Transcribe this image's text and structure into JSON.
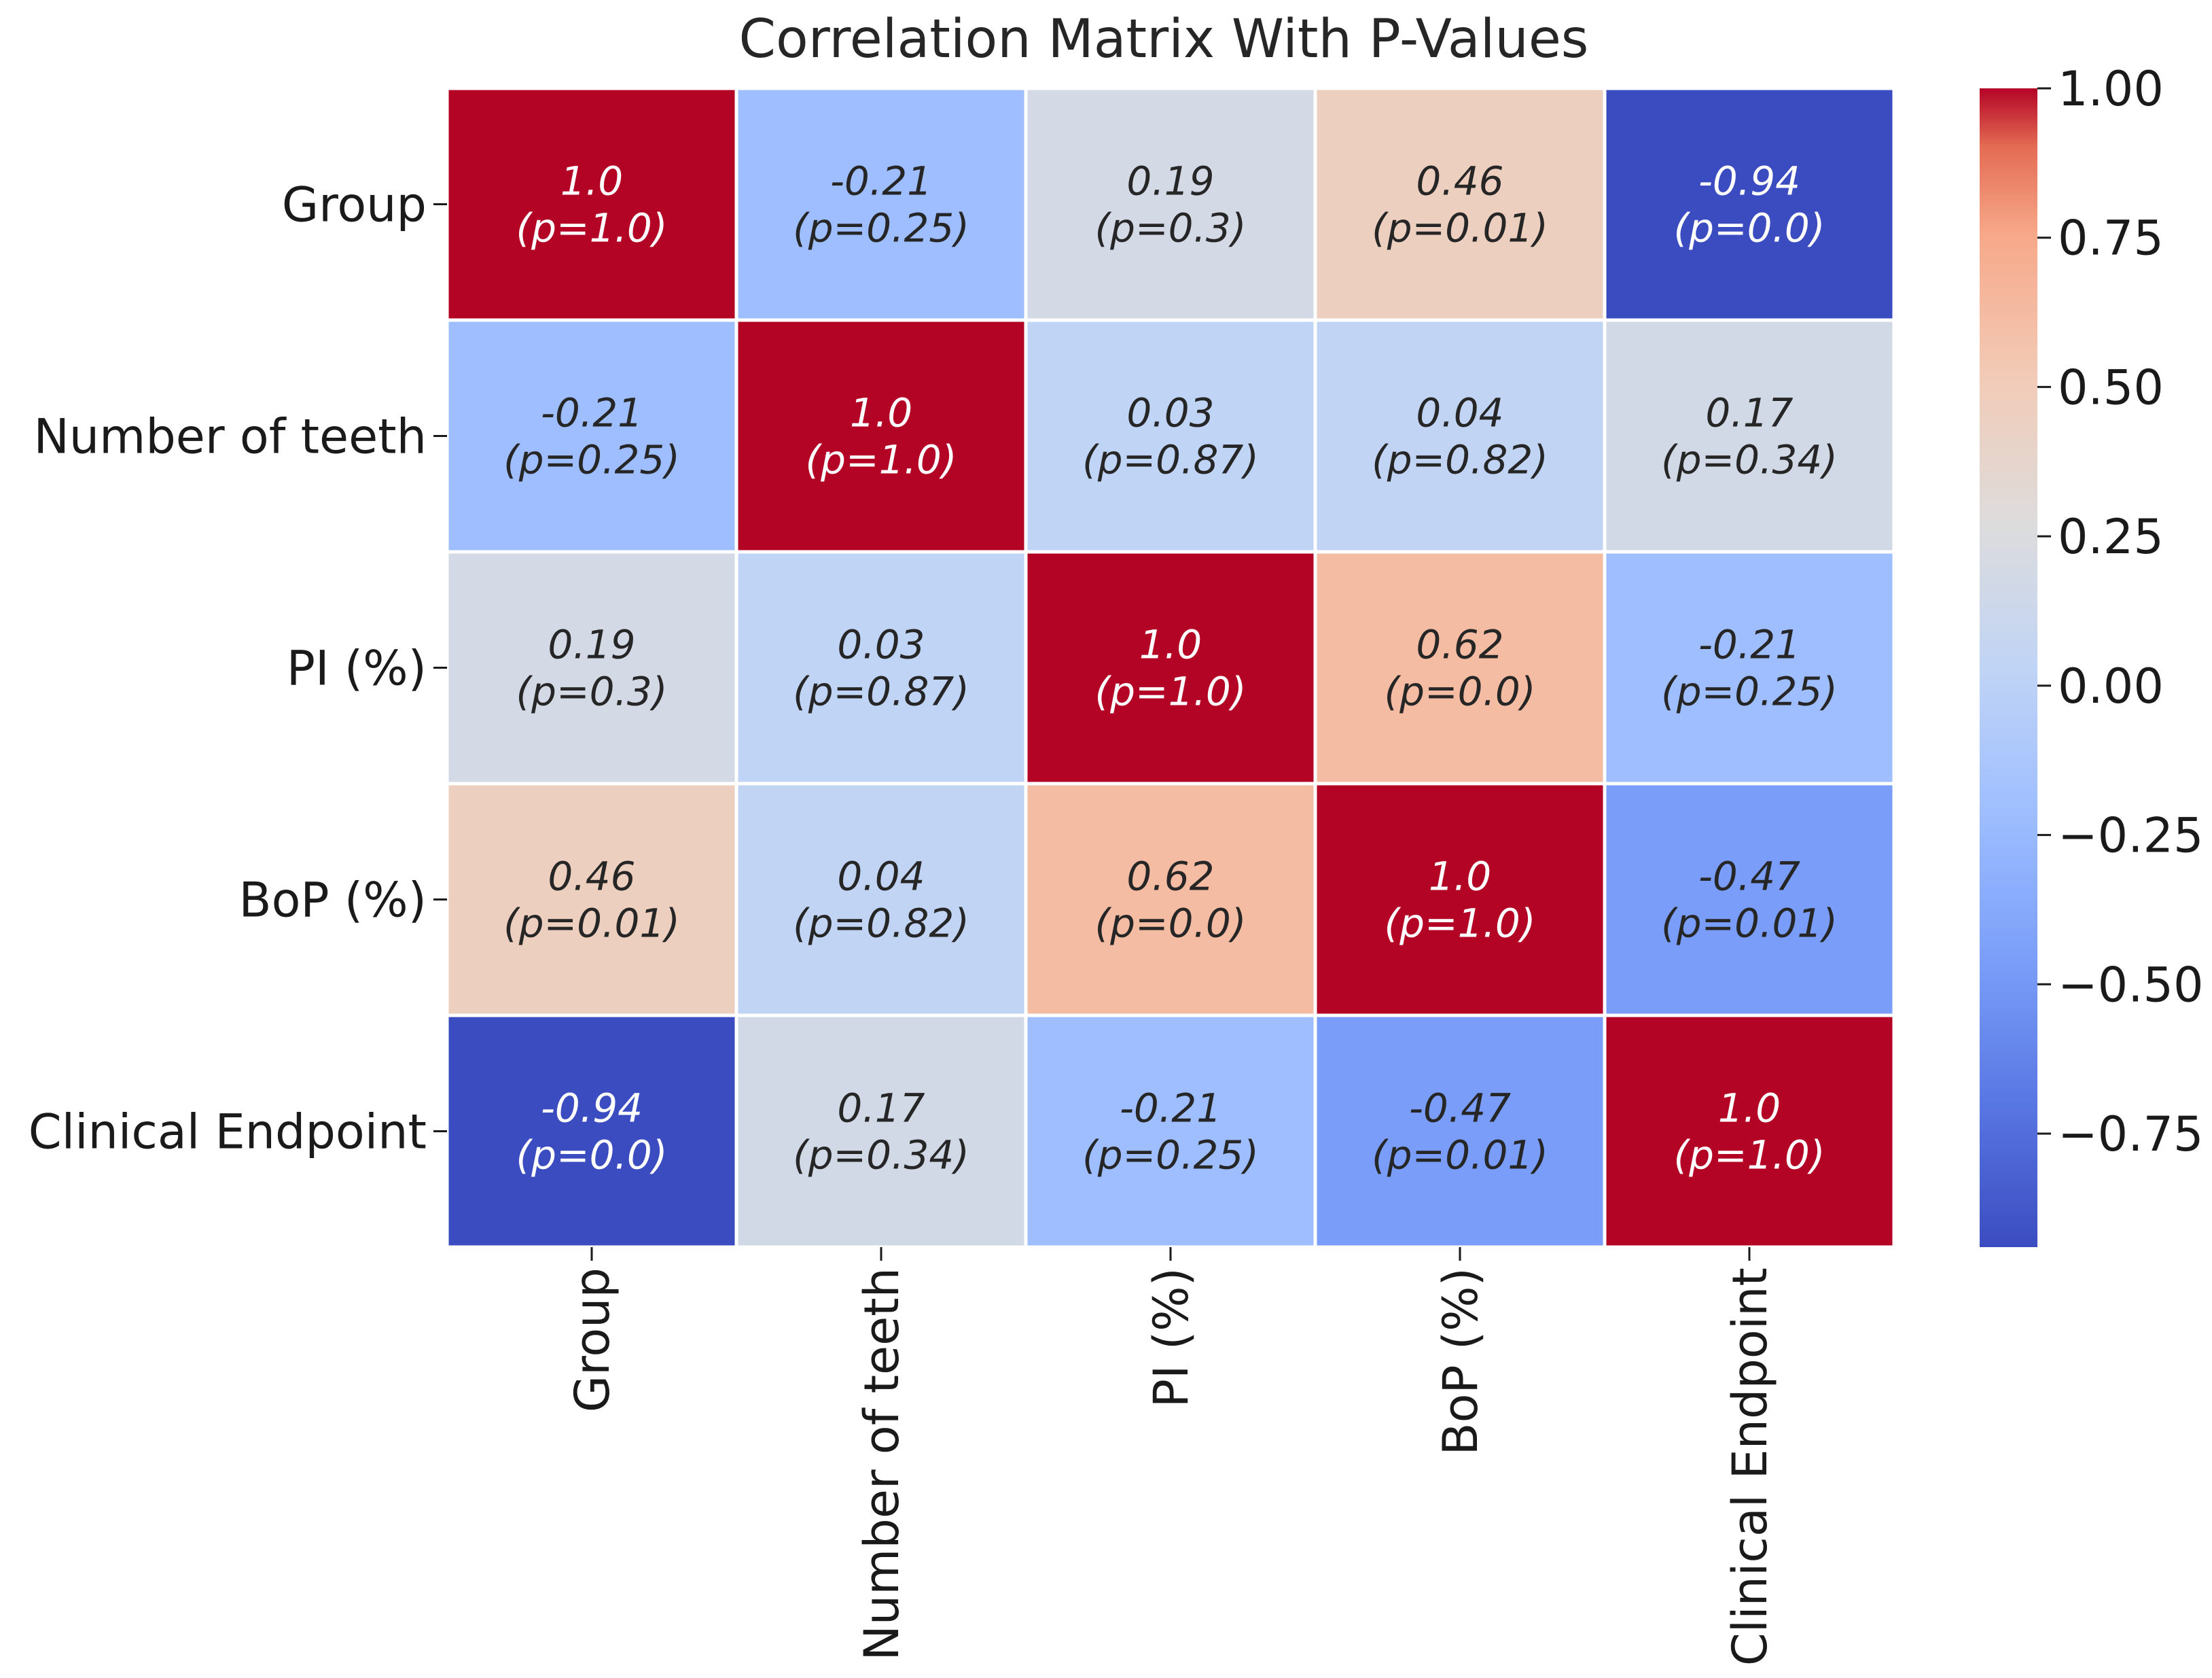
{
  "chart_data": {
    "type": "heatmap",
    "title": "Correlation Matrix With P-Values",
    "rows": [
      "Group",
      "Number of teeth",
      "PI (%)",
      "BoP (%)",
      "Clinical Endpoint"
    ],
    "columns": [
      "Group",
      "Number of teeth",
      "PI (%)",
      "BoP (%)",
      "Clinical Endpoint"
    ],
    "values": [
      [
        1.0,
        -0.21,
        0.19,
        0.46,
        -0.94
      ],
      [
        -0.21,
        1.0,
        0.03,
        0.04,
        0.17
      ],
      [
        0.19,
        0.03,
        1.0,
        0.62,
        -0.21
      ],
      [
        0.46,
        0.04,
        0.62,
        1.0,
        -0.47
      ],
      [
        -0.94,
        0.17,
        -0.21,
        -0.47,
        1.0
      ]
    ],
    "cell_labels": [
      [
        [
          "1.0",
          "(p=1.0)"
        ],
        [
          "-0.21",
          "(p=0.25)"
        ],
        [
          "0.19",
          "(p=0.3)"
        ],
        [
          "0.46",
          "(p=0.01)"
        ],
        [
          "-0.94",
          "(p=0.0)"
        ]
      ],
      [
        [
          "-0.21",
          "(p=0.25)"
        ],
        [
          "1.0",
          "(p=1.0)"
        ],
        [
          "0.03",
          "(p=0.87)"
        ],
        [
          "0.04",
          "(p=0.82)"
        ],
        [
          "0.17",
          "(p=0.34)"
        ]
      ],
      [
        [
          "0.19",
          "(p=0.3)"
        ],
        [
          "0.03",
          "(p=0.87)"
        ],
        [
          "1.0",
          "(p=1.0)"
        ],
        [
          "0.62",
          "(p=0.0)"
        ],
        [
          "-0.21",
          "(p=0.25)"
        ]
      ],
      [
        [
          "0.46",
          "(p=0.01)"
        ],
        [
          "0.04",
          "(p=0.82)"
        ],
        [
          "0.62",
          "(p=0.0)"
        ],
        [
          "1.0",
          "(p=1.0)"
        ],
        [
          "-0.47",
          "(p=0.01)"
        ]
      ],
      [
        [
          "-0.94",
          "(p=0.0)"
        ],
        [
          "0.17",
          "(p=0.34)"
        ],
        [
          "-0.21",
          "(p=0.25)"
        ],
        [
          "-0.47",
          "(p=0.01)"
        ],
        [
          "1.0",
          "(p=1.0)"
        ]
      ]
    ],
    "colormap": "coolwarm",
    "colorbar": {
      "range": [
        -0.94,
        1.0
      ],
      "ticks": [
        1.0,
        0.75,
        0.5,
        0.25,
        0.0,
        -0.25,
        -0.5,
        -0.75
      ],
      "tick_labels": [
        "1.00",
        "0.75",
        "0.50",
        "0.25",
        "0.00",
        "−0.25",
        "−0.50",
        "−0.75"
      ]
    },
    "grid": false
  },
  "colors": {
    "cell_border": "#ffffff",
    "text_dark": "#262626",
    "text_light": "#ffffff",
    "tick_color": "#1a1a1a"
  }
}
